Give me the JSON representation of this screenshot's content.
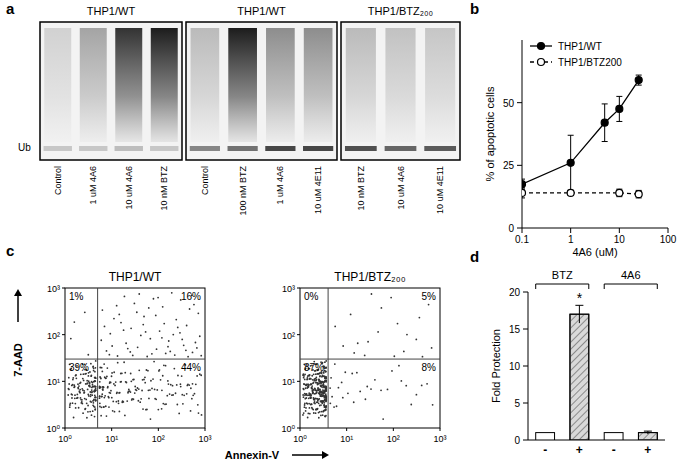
{
  "panel_letters": [
    "a",
    "b",
    "c",
    "d"
  ],
  "chart_data": [
    {
      "type": "blot",
      "marker_label": "Ub",
      "blots": [
        {
          "title": "THP1/WT",
          "lanes": [
            "Control",
            "1 uM 4A6",
            "10 uM 4A6",
            "10 nM BTZ"
          ],
          "smear": [
            0.15,
            0.35,
            0.85,
            0.95
          ],
          "band": [
            0.2,
            0.2,
            0.25,
            0.2
          ]
        },
        {
          "title": "THP1/WT",
          "lanes": [
            "Control",
            "100 nM BTZ",
            "1 uM 4A6",
            "10 uM 4E11"
          ],
          "smear": [
            0.25,
            0.95,
            0.45,
            0.45
          ],
          "band": [
            0.5,
            0.6,
            0.8,
            0.8
          ]
        },
        {
          "title": "THP1/BTZ₂₀₀",
          "lanes": [
            "10 nM BTZ",
            "10 uM 4A6",
            "10 uM 4E11"
          ],
          "smear": [
            0.25,
            0.22,
            0.2
          ],
          "band": [
            0.75,
            0.65,
            0.7
          ]
        }
      ]
    },
    {
      "type": "line",
      "xlabel": "4A6 (uM)",
      "ylabel": "% of apoptotic cells",
      "log": "x",
      "xlim": [
        0.1,
        100
      ],
      "xticks": [
        0.1,
        1,
        10,
        100
      ],
      "ylim": [
        0,
        75
      ],
      "yticks": [
        0,
        25,
        50
      ],
      "legend": "upper left",
      "series": [
        {
          "name": "THP1/WT",
          "color": "#000000",
          "marker": "filled",
          "line_style": "solid",
          "x": [
            0.1,
            1,
            5,
            10,
            25
          ],
          "values": [
            17.5,
            26,
            42,
            47.5,
            59
          ],
          "errors": [
            2,
            11,
            7.5,
            5,
            2
          ]
        },
        {
          "name": "THP1/BTZ200",
          "color": "#000000",
          "marker": "open",
          "line_style": "dashed",
          "x": [
            0.1,
            1,
            10,
            25
          ],
          "values": [
            14,
            14,
            14,
            13.5
          ],
          "errors": [
            2,
            1,
            1.5,
            1.5
          ]
        }
      ]
    },
    {
      "type": "flow",
      "xlabel": "Annexin-V",
      "ylabel": "7-AAD",
      "log": true,
      "xlim": [
        1,
        1000
      ],
      "ylim": [
        1,
        1000
      ],
      "xticks": [
        {
          "value": 1,
          "label": "10⁰"
        },
        {
          "value": 10,
          "label": "10¹"
        },
        {
          "value": 100,
          "label": "10²"
        },
        {
          "value": 1000,
          "label": "10³"
        }
      ],
      "yticks": [
        {
          "value": 1,
          "label": "10⁰"
        },
        {
          "value": 10,
          "label": "10¹"
        },
        {
          "value": 100,
          "label": "10²"
        },
        {
          "value": 1000,
          "label": "10³"
        }
      ],
      "plots": [
        {
          "title": "THP1/WT",
          "gate": [
            5,
            30
          ],
          "values": [
            1,
            16,
            39,
            44
          ],
          "value_labels": [
            "1%",
            "16%",
            "39%",
            "44%"
          ]
        },
        {
          "title": "THP1/BTZ₂₀₀",
          "gate": [
            4,
            30
          ],
          "values": [
            0,
            5,
            87,
            8
          ],
          "value_labels": [
            "0%",
            "5%",
            "87%",
            "8%"
          ]
        }
      ]
    },
    {
      "type": "bar",
      "ylabel": "Fold Protection",
      "categories": [
        "-",
        "+",
        "-",
        "+"
      ],
      "values": [
        1,
        17,
        1,
        1
      ],
      "errors": [
        0,
        1.2,
        0,
        0.2
      ],
      "colors": [
        "#ffffff",
        "#d9d9d9",
        "#ffffff",
        "#d9d9d9"
      ],
      "ylim": [
        0,
        20
      ],
      "yticks": [
        0,
        5,
        10,
        15,
        20
      ],
      "groups": [
        {
          "label": "BTZ",
          "members": [
            0,
            1
          ]
        },
        {
          "label": "4A6",
          "members": [
            2,
            3
          ]
        }
      ],
      "annotations": [
        {
          "text": "*",
          "category": 1
        }
      ]
    }
  ]
}
